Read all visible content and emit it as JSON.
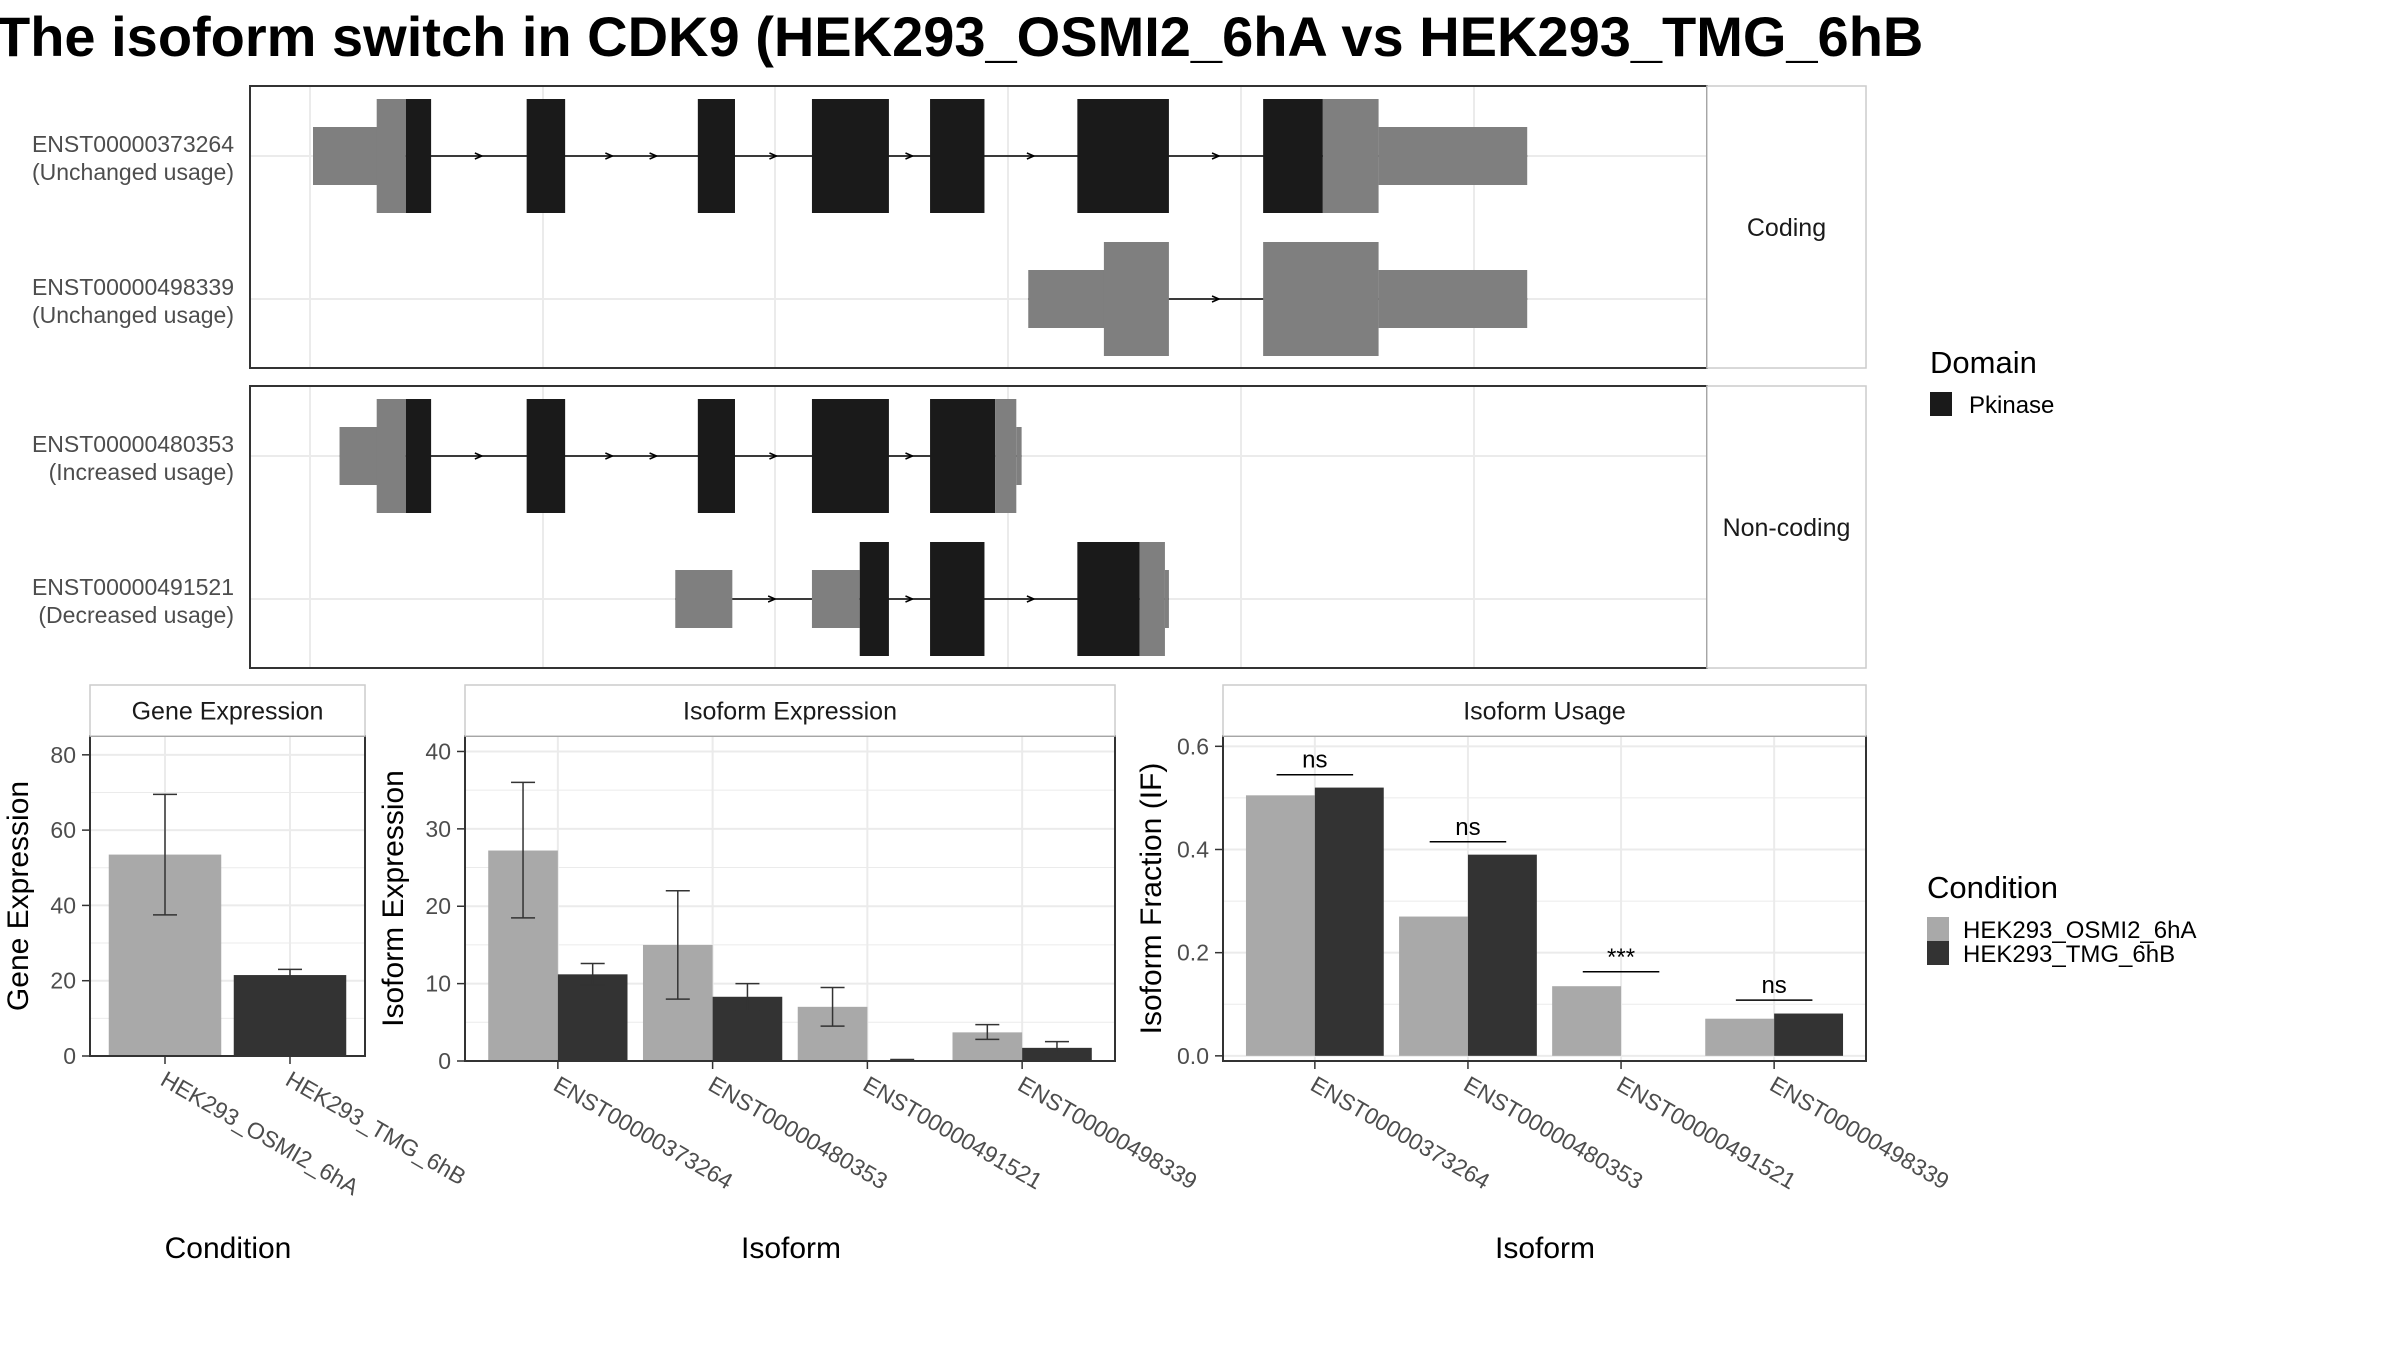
{
  "title": "The isoform switch in CDK9 (HEK293_OSMI2_6hA vs HEK293_TMG_6hB",
  "colors": {
    "domain": "#1a1a1a",
    "utr": "#7f7f7f",
    "cond_a": "#a9a9a9",
    "cond_b": "#333333",
    "grid": "#ebebeb",
    "frame": "#333333",
    "strip_border": "#cccccc"
  },
  "structure": {
    "x_range": [
      0,
      100
    ],
    "facets": [
      {
        "label": "Coding",
        "transcripts": [
          {
            "id": "ENST00000373264",
            "usage": "(Unchanged usage)",
            "exons": [
              {
                "start": 0.0,
                "end": 6.9,
                "kind": "utr"
              },
              {
                "start": 4.8,
                "end": 7.0,
                "kind": "utr_tall"
              },
              {
                "start": 7.0,
                "end": 8.9,
                "kind": "domain"
              },
              {
                "start": 16.1,
                "end": 19.0,
                "kind": "domain"
              },
              {
                "start": 29.0,
                "end": 31.8,
                "kind": "domain"
              },
              {
                "start": 37.6,
                "end": 43.4,
                "kind": "domain"
              },
              {
                "start": 46.5,
                "end": 50.6,
                "kind": "domain"
              },
              {
                "start": 57.6,
                "end": 64.5,
                "kind": "domain"
              },
              {
                "start": 71.6,
                "end": 76.1,
                "kind": "domain"
              },
              {
                "start": 76.1,
                "end": 80.3,
                "kind": "utr_tall"
              },
              {
                "start": 80.3,
                "end": 91.5,
                "kind": "utr"
              }
            ]
          },
          {
            "id": "ENST00000498339",
            "usage": "(Unchanged usage)",
            "exons": [
              {
                "start": 53.9,
                "end": 60.0,
                "kind": "utr"
              },
              {
                "start": 59.6,
                "end": 64.5,
                "kind": "utr_tall"
              },
              {
                "start": 71.6,
                "end": 80.3,
                "kind": "utr_tall"
              },
              {
                "start": 80.3,
                "end": 91.5,
                "kind": "utr"
              }
            ]
          }
        ]
      },
      {
        "label": "Non-coding",
        "transcripts": [
          {
            "id": "ENST00000480353",
            "usage": "(Increased usage)",
            "exons": [
              {
                "start": 2.0,
                "end": 5.0,
                "kind": "utr"
              },
              {
                "start": 4.8,
                "end": 7.0,
                "kind": "utr_tall"
              },
              {
                "start": 7.0,
                "end": 8.9,
                "kind": "domain"
              },
              {
                "start": 16.1,
                "end": 19.0,
                "kind": "domain"
              },
              {
                "start": 29.0,
                "end": 31.8,
                "kind": "domain"
              },
              {
                "start": 37.6,
                "end": 43.4,
                "kind": "domain"
              },
              {
                "start": 46.5,
                "end": 51.4,
                "kind": "domain"
              },
              {
                "start": 51.4,
                "end": 53.0,
                "kind": "utr_tall"
              },
              {
                "start": 53.0,
                "end": 53.4,
                "kind": "utr"
              }
            ]
          },
          {
            "id": "ENST00000491521",
            "usage": "(Decreased usage)",
            "exons": [
              {
                "start": 27.3,
                "end": 31.6,
                "kind": "utr"
              },
              {
                "start": 37.6,
                "end": 41.2,
                "kind": "utr"
              },
              {
                "start": 41.2,
                "end": 43.4,
                "kind": "domain"
              },
              {
                "start": 46.5,
                "end": 50.6,
                "kind": "domain"
              },
              {
                "start": 57.6,
                "end": 62.3,
                "kind": "domain"
              },
              {
                "start": 62.3,
                "end": 64.2,
                "kind": "utr_tall"
              },
              {
                "start": 64.2,
                "end": 64.5,
                "kind": "utr"
              }
            ]
          }
        ]
      }
    ]
  },
  "legend_domain": {
    "title": "Domain",
    "items": [
      {
        "label": "Pkinase",
        "color": "#1a1a1a"
      }
    ]
  },
  "legend_condition": {
    "title": "Condition",
    "items": [
      {
        "label": "HEK293_OSMI2_6hA",
        "color": "#a9a9a9"
      },
      {
        "label": "HEK293_TMG_6hB",
        "color": "#333333"
      }
    ]
  },
  "chart_data": [
    {
      "type": "bar",
      "title": "Gene Expression",
      "xlabel": "Condition",
      "ylabel": "Gene Expression",
      "ylim": [
        0,
        85
      ],
      "yticks": [
        0,
        20,
        40,
        60,
        80
      ],
      "categories": [
        "HEK293_OSMI2_6hA",
        "HEK293_TMG_6hB"
      ],
      "values": [
        53.5,
        21.5
      ],
      "error_low": [
        37.5,
        20.0
      ],
      "error_high": [
        69.5,
        23.0
      ],
      "bar_colors": [
        "#a9a9a9",
        "#333333"
      ]
    },
    {
      "type": "bar",
      "title": "Isoform Expression",
      "xlabel": "Isoform",
      "ylabel": "Isoform Expression",
      "ylim": [
        0,
        42
      ],
      "yticks": [
        0,
        10,
        20,
        30,
        40
      ],
      "categories": [
        "ENST00000373264",
        "ENST00000480353",
        "ENST00000491521",
        "ENST00000498339"
      ],
      "series": [
        {
          "name": "HEK293_OSMI2_6hA",
          "values": [
            27.2,
            15.0,
            7.0,
            3.7
          ],
          "error_low": [
            18.5,
            8.0,
            4.5,
            2.8
          ],
          "error_high": [
            36.0,
            22.0,
            9.5,
            4.7
          ]
        },
        {
          "name": "HEK293_TMG_6hB",
          "values": [
            11.2,
            8.3,
            0.1,
            1.7
          ],
          "error_low": [
            9.8,
            6.5,
            0.0,
            1.0
          ],
          "error_high": [
            12.6,
            10.0,
            0.2,
            2.5
          ]
        }
      ]
    },
    {
      "type": "bar",
      "title": "Isoform Usage",
      "xlabel": "Isoform",
      "ylabel": "Isoform Fraction (IF)",
      "ylim": [
        -0.01,
        0.62
      ],
      "yticks": [
        0.0,
        0.2,
        0.4,
        0.6
      ],
      "ytick_labels": [
        "0.0",
        "0.2",
        "0.4",
        "0.6"
      ],
      "categories": [
        "ENST00000373264",
        "ENST00000480353",
        "ENST00000491521",
        "ENST00000498339"
      ],
      "series": [
        {
          "name": "HEK293_OSMI2_6hA",
          "values": [
            0.505,
            0.27,
            0.135,
            0.072
          ]
        },
        {
          "name": "HEK293_TMG_6hB",
          "values": [
            0.52,
            0.39,
            0.0,
            0.082
          ]
        }
      ],
      "significance": [
        {
          "label": "ns",
          "y": 0.545
        },
        {
          "label": "ns",
          "y": 0.415
        },
        {
          "label": "***",
          "y": 0.163
        },
        {
          "label": "ns",
          "y": 0.108
        }
      ]
    }
  ]
}
